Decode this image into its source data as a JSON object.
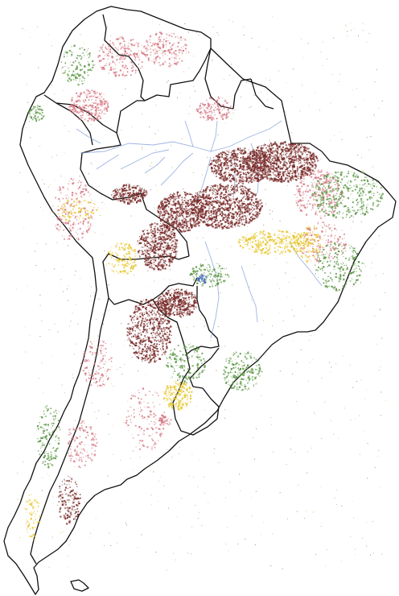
{
  "map": {
    "type": "land-cover map",
    "region": "South America",
    "background": "#ffffff",
    "outline_color": "#111111",
    "river_color": "#7f9bd8",
    "labels": [],
    "legend": [],
    "cover_colors": {
      "dark_red": "#7a2d2b",
      "pink": "#d77b86",
      "green": "#5f9a48",
      "yellow": "#e8c72f",
      "blue": "#3b63c7"
    }
  }
}
